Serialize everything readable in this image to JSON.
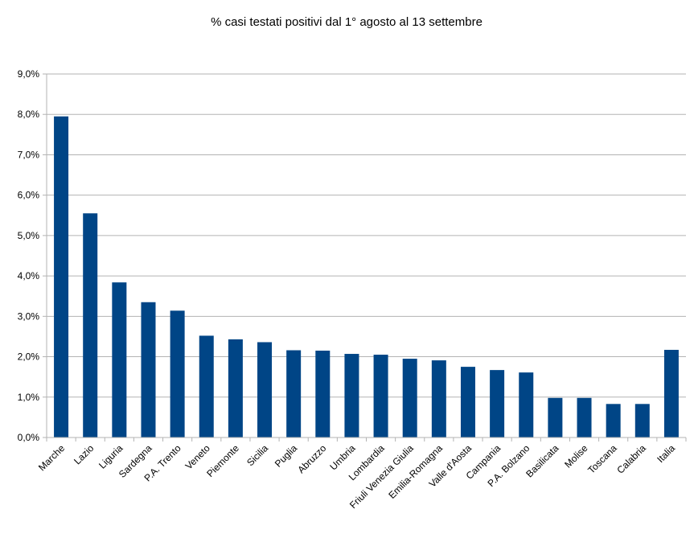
{
  "chart_data": {
    "type": "bar",
    "title": "% casi testati positivi dal 1° agosto al 13 settembre",
    "xlabel": "",
    "ylabel": "",
    "ylim": [
      0,
      9
    ],
    "y_ticks": [
      "0,0%",
      "1,0%",
      "2,0%",
      "3,0%",
      "4,0%",
      "5,0%",
      "6,0%",
      "7,0%",
      "8,0%",
      "9,0%"
    ],
    "grid": true,
    "legend": "none",
    "bar_color": "#004586",
    "categories": [
      "Marche",
      "Lazio",
      "Liguria",
      "Sardegna",
      "P.A. Trento",
      "Veneto",
      "Piemonte",
      "Sicilia",
      "Puglia",
      "Abruzzo",
      "Umbria",
      "Lombardia",
      "Friuli Venezia Giulia",
      "Emilia-Romagna",
      "Valle d'Aosta",
      "Campania",
      "P.A. Bolzano",
      "Basilicata",
      "Molise",
      "Toscana",
      "Calabria",
      "Italia"
    ],
    "values": [
      7.95,
      5.55,
      3.84,
      3.35,
      3.14,
      2.52,
      2.43,
      2.36,
      2.16,
      2.15,
      2.07,
      2.05,
      1.95,
      1.91,
      1.75,
      1.67,
      1.61,
      0.98,
      0.98,
      0.83,
      0.83,
      2.17
    ]
  }
}
